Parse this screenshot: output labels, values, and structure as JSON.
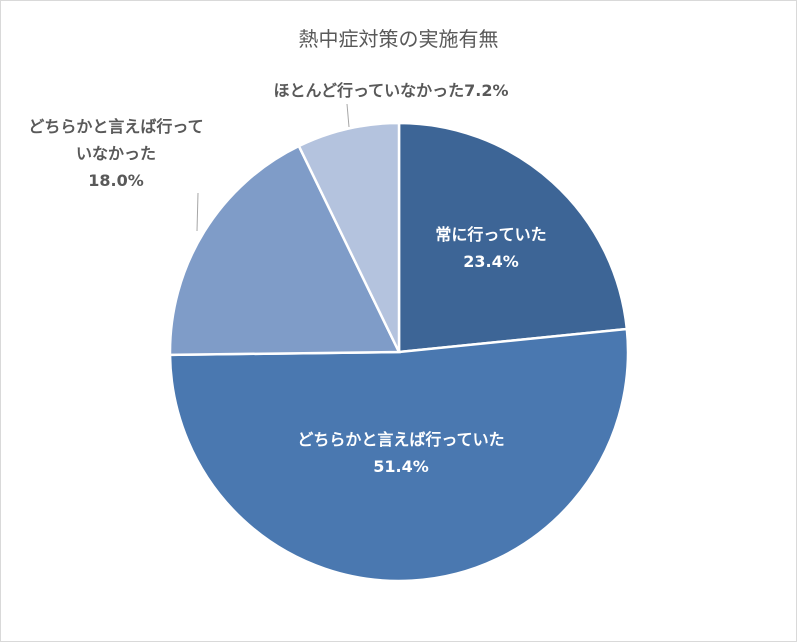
{
  "chart_data": {
    "type": "pie",
    "title": "熱中症対策の実施有無",
    "categories": [
      "常に行っていた",
      "どちらかと言えば行っていた",
      "どちらかと言えば行っていなかった",
      "ほとんど行っていなかった"
    ],
    "values": [
      23.4,
      51.4,
      18.0,
      7.2
    ],
    "value_labels": [
      "23.4%",
      "51.4%",
      "18.0%",
      "7.2%"
    ],
    "colors": [
      "#3d6596",
      "#4a78b0",
      "#7f9cc8",
      "#b4c3de"
    ]
  }
}
